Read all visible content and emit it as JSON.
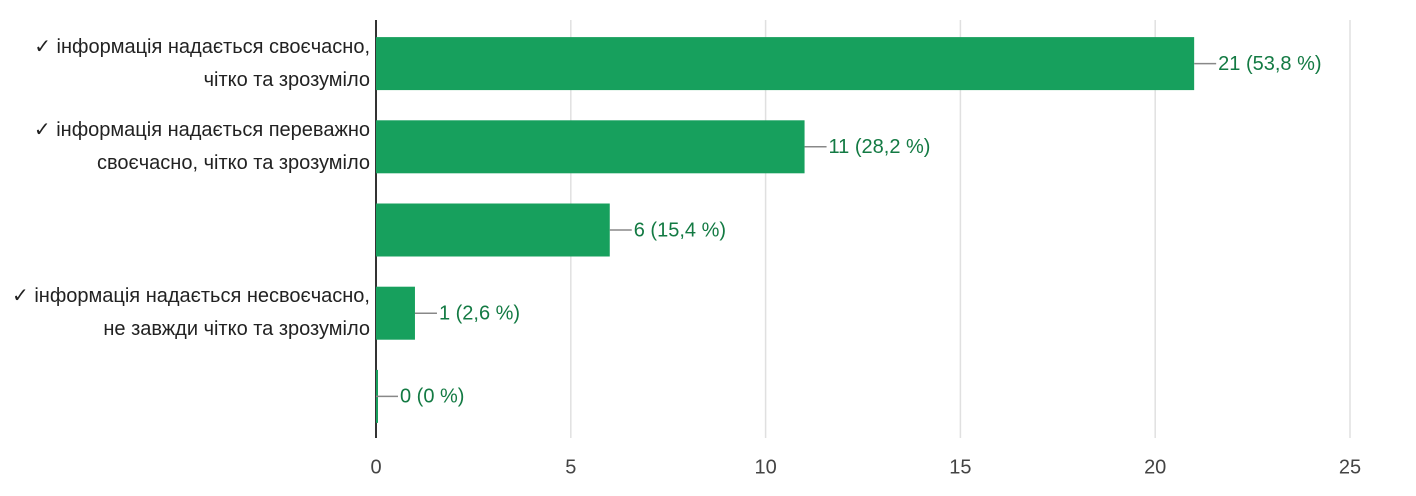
{
  "chart_data": {
    "type": "bar",
    "orientation": "horizontal",
    "categories": [
      "✓ інформація надається своєчасно, чітко та зрозуміло",
      "✓ інформація надається переважно своєчасно, чітко та зрозуміло",
      null,
      "✓ інформація надається несвоєчасно, не завжди чітко та зрозуміло",
      null
    ],
    "values": [
      21,
      11,
      6,
      1,
      0
    ],
    "value_labels": [
      "21 (53,8 %)",
      "11 (28,2 %)",
      "6 (15,4 %)",
      "1 (2,6 %)",
      "0 (0 %)"
    ],
    "color": "#17a05d",
    "xlim": [
      0,
      25
    ],
    "xticks": [
      0,
      5,
      10,
      15,
      20,
      25
    ],
    "grid": true
  }
}
